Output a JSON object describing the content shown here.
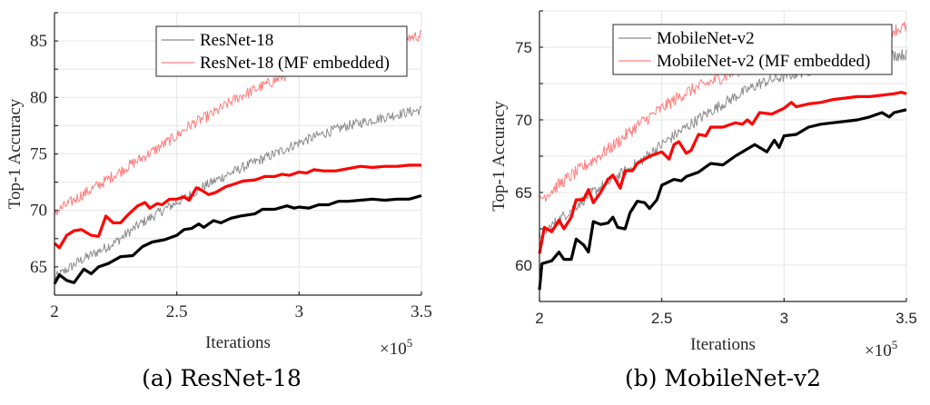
{
  "chart_data": [
    {
      "type": "line",
      "id": "resnet",
      "caption": "(a) ResNet-18",
      "xlabel": "Iterations",
      "ylabel": "Top-1 Accuracy",
      "x_multiplier": "×10",
      "x_multiplier_exp": "5",
      "xlim": [
        2,
        3.5
      ],
      "ylim": [
        62.5,
        87.5
      ],
      "xticks": [
        2,
        2.5,
        3,
        3.5
      ],
      "xtick_labels": [
        "2",
        "2.5",
        "3",
        "3.5"
      ],
      "yticks": [
        65,
        70,
        75,
        80,
        85
      ],
      "ytick_labels": [
        "65",
        "70",
        "75",
        "80",
        "85"
      ],
      "minor_ygrid": [
        67.5,
        72.5,
        77.5,
        82.5
      ],
      "grid": true,
      "legend_position": "top-right",
      "legend": [
        {
          "label": "ResNet-18",
          "color": "#8c8c8c"
        },
        {
          "label": "ResNet-18 (MF embedded)",
          "color": "#ff7f7f"
        }
      ],
      "series": [
        {
          "name": "ResNet-18 (raw)",
          "color": "#8c8c8c",
          "width": 1,
          "noisy": true,
          "noise": 0.45,
          "x": [
            2.0,
            2.1,
            2.2,
            2.25,
            2.35,
            2.45,
            2.55,
            2.6,
            2.7,
            2.8,
            2.9,
            3.0,
            3.1,
            3.2,
            3.3,
            3.4,
            3.5
          ],
          "y": [
            64.0,
            65.5,
            66.6,
            67.2,
            68.8,
            70.1,
            71.3,
            72.0,
            73.1,
            74.1,
            75.0,
            76.0,
            76.8,
            77.5,
            78.0,
            78.5,
            78.9
          ]
        },
        {
          "name": "ResNet-18 (MF embedded, raw)",
          "color": "#ff7f7f",
          "width": 1,
          "noisy": true,
          "noise": 0.5,
          "x": [
            2.0,
            2.1,
            2.2,
            2.3,
            2.4,
            2.5,
            2.55,
            2.65,
            2.75,
            2.85,
            2.95,
            3.05,
            3.15,
            3.25,
            3.35,
            3.45,
            3.5
          ],
          "y": [
            69.8,
            71.2,
            72.5,
            73.9,
            75.2,
            76.6,
            77.5,
            78.6,
            80.0,
            81.0,
            82.0,
            82.8,
            83.5,
            84.2,
            84.8,
            85.3,
            85.5
          ]
        },
        {
          "name": "ResNet-18 (smoothed)",
          "color": "#000000",
          "width": 3.2,
          "noisy": false,
          "x": [
            2.0,
            2.02,
            2.05,
            2.08,
            2.12,
            2.15,
            2.18,
            2.22,
            2.27,
            2.32,
            2.36,
            2.4,
            2.45,
            2.5,
            2.53,
            2.56,
            2.59,
            2.61,
            2.65,
            2.68,
            2.72,
            2.76,
            2.82,
            2.85,
            2.9,
            2.95,
            2.98,
            3.0,
            3.04,
            3.08,
            3.12,
            3.16,
            3.2,
            3.25,
            3.3,
            3.35,
            3.4,
            3.45,
            3.5
          ],
          "y": [
            63.5,
            64.3,
            63.8,
            63.6,
            64.8,
            64.4,
            65.0,
            65.3,
            65.9,
            66.0,
            66.8,
            67.2,
            67.4,
            67.8,
            68.3,
            68.4,
            68.8,
            68.5,
            69.1,
            68.9,
            69.3,
            69.5,
            69.7,
            70.1,
            70.1,
            70.4,
            70.2,
            70.3,
            70.2,
            70.5,
            70.5,
            70.8,
            70.8,
            70.9,
            71.0,
            70.9,
            71.0,
            71.0,
            71.3
          ]
        },
        {
          "name": "ResNet-18 MF embedded (smoothed)",
          "color": "#ff0000",
          "width": 3.2,
          "noisy": false,
          "x": [
            2.0,
            2.02,
            2.05,
            2.08,
            2.11,
            2.15,
            2.18,
            2.21,
            2.24,
            2.27,
            2.3,
            2.34,
            2.37,
            2.39,
            2.42,
            2.44,
            2.47,
            2.5,
            2.53,
            2.55,
            2.58,
            2.6,
            2.63,
            2.66,
            2.7,
            2.73,
            2.77,
            2.82,
            2.86,
            2.9,
            2.93,
            2.96,
            3.0,
            3.03,
            3.06,
            3.1,
            3.15,
            3.2,
            3.25,
            3.3,
            3.35,
            3.4,
            3.45,
            3.5
          ],
          "y": [
            67.1,
            66.7,
            67.8,
            68.2,
            68.3,
            67.8,
            67.7,
            69.5,
            68.9,
            68.9,
            69.6,
            70.4,
            70.7,
            70.2,
            70.6,
            70.5,
            71.0,
            71.0,
            71.2,
            70.9,
            72.0,
            71.8,
            71.4,
            71.6,
            72.1,
            72.3,
            72.6,
            72.7,
            73.0,
            73.0,
            73.2,
            73.1,
            73.4,
            73.3,
            73.6,
            73.5,
            73.5,
            73.7,
            73.9,
            73.8,
            73.9,
            73.9,
            74.0,
            74.0
          ]
        }
      ]
    },
    {
      "type": "line",
      "id": "mobilenet",
      "caption": "(b) MobileNet-v2",
      "xlabel": "Iterations",
      "ylabel": "Top-1 Accuracy",
      "x_multiplier": "×10",
      "x_multiplier_exp": "5",
      "xlim": [
        2,
        3.5
      ],
      "ylim": [
        57.5,
        77.5
      ],
      "xticks": [
        2,
        2.5,
        3,
        3.5
      ],
      "xtick_labels": [
        "2",
        "2.5",
        "3",
        "3.5"
      ],
      "yticks": [
        60,
        65,
        70,
        75
      ],
      "ytick_labels": [
        "60",
        "65",
        "70",
        "75"
      ],
      "minor_ygrid": [
        62.5,
        67.5,
        72.5
      ],
      "grid": true,
      "legend_position": "top-right",
      "legend": [
        {
          "label": "MobileNet-v2",
          "color": "#8c8c8c"
        },
        {
          "label": "MobileNet-v2 (MF embedded)",
          "color": "#ff7f7f"
        }
      ],
      "series": [
        {
          "name": "MobileNet-v2 (raw)",
          "color": "#8c8c8c",
          "width": 1,
          "noisy": true,
          "noise": 0.4,
          "x": [
            2.0,
            2.1,
            2.2,
            2.3,
            2.4,
            2.5,
            2.6,
            2.7,
            2.8,
            2.9,
            3.0,
            3.1,
            3.2,
            3.3,
            3.4,
            3.5
          ],
          "y": [
            62.0,
            63.4,
            64.8,
            65.9,
            67.0,
            68.3,
            69.5,
            70.6,
            71.6,
            72.5,
            73.0,
            73.4,
            73.8,
            74.1,
            74.4,
            74.5
          ]
        },
        {
          "name": "MobileNet-v2 (MF embedded, raw)",
          "color": "#ff7f7f",
          "width": 1,
          "noisy": true,
          "noise": 0.45,
          "x": [
            2.0,
            2.1,
            2.2,
            2.3,
            2.4,
            2.5,
            2.6,
            2.7,
            2.8,
            2.9,
            3.0,
            3.2,
            3.4,
            3.5
          ],
          "y": [
            64.5,
            65.8,
            67.0,
            68.2,
            69.6,
            70.8,
            71.9,
            72.6,
            73.3,
            74.0,
            74.6,
            75.4,
            76.0,
            76.4
          ]
        },
        {
          "name": "MobileNet-v2 (smoothed)",
          "color": "#000000",
          "width": 3.2,
          "noisy": false,
          "x": [
            2.0,
            2.01,
            2.05,
            2.08,
            2.1,
            2.13,
            2.15,
            2.18,
            2.2,
            2.22,
            2.25,
            2.28,
            2.3,
            2.32,
            2.35,
            2.37,
            2.4,
            2.43,
            2.45,
            2.48,
            2.5,
            2.55,
            2.58,
            2.6,
            2.65,
            2.7,
            2.75,
            2.8,
            2.85,
            2.88,
            2.93,
            2.96,
            2.98,
            3.0,
            3.05,
            3.1,
            3.15,
            3.2,
            3.25,
            3.3,
            3.35,
            3.4,
            3.43,
            3.45,
            3.5
          ],
          "y": [
            58.3,
            60.1,
            60.3,
            60.9,
            60.4,
            60.4,
            61.8,
            61.4,
            60.9,
            63.0,
            62.8,
            62.9,
            63.3,
            62.6,
            62.5,
            63.6,
            64.4,
            64.3,
            63.9,
            64.5,
            65.5,
            65.9,
            65.8,
            66.1,
            66.4,
            67.0,
            66.9,
            67.5,
            68.0,
            68.3,
            67.8,
            68.6,
            68.1,
            68.9,
            69.0,
            69.5,
            69.7,
            69.8,
            69.9,
            70.0,
            70.2,
            70.5,
            70.2,
            70.5,
            70.7
          ]
        },
        {
          "name": "MobileNet-v2 MF embedded (smoothed)",
          "color": "#ff0000",
          "width": 3.2,
          "noisy": false,
          "x": [
            2.0,
            2.02,
            2.05,
            2.08,
            2.1,
            2.13,
            2.15,
            2.18,
            2.2,
            2.22,
            2.25,
            2.28,
            2.3,
            2.33,
            2.35,
            2.38,
            2.4,
            2.45,
            2.5,
            2.53,
            2.55,
            2.57,
            2.6,
            2.62,
            2.65,
            2.68,
            2.7,
            2.75,
            2.8,
            2.83,
            2.85,
            2.87,
            2.9,
            2.95,
            3.0,
            3.03,
            3.05,
            3.1,
            3.15,
            3.2,
            3.25,
            3.3,
            3.35,
            3.4,
            3.45,
            3.48,
            3.5
          ],
          "y": [
            60.8,
            62.6,
            62.3,
            63.1,
            62.5,
            63.3,
            64.5,
            64.5,
            65.2,
            64.3,
            65.0,
            65.9,
            66.2,
            65.3,
            66.5,
            66.5,
            67.0,
            67.5,
            67.8,
            67.3,
            68.3,
            68.5,
            67.7,
            67.9,
            69.0,
            68.9,
            69.5,
            69.5,
            69.8,
            69.7,
            70.0,
            69.7,
            70.5,
            70.4,
            70.8,
            71.2,
            70.9,
            71.1,
            71.2,
            71.4,
            71.5,
            71.6,
            71.6,
            71.7,
            71.8,
            71.9,
            71.8
          ]
        }
      ]
    }
  ]
}
